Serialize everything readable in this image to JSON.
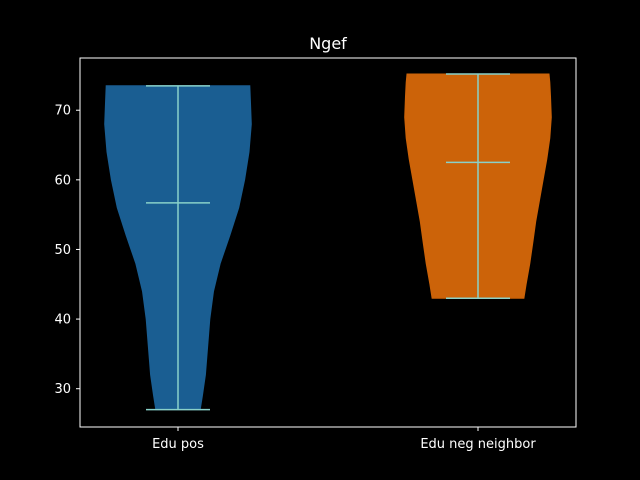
{
  "chart_data": {
    "type": "violin",
    "title": "Ngef",
    "xlabel": "",
    "ylabel": "",
    "categories": [
      "Edu pos",
      "Edu neg neighbor"
    ],
    "ylim": [
      24.5,
      77.5
    ],
    "yticks": [
      30,
      40,
      50,
      60,
      70
    ],
    "grid": false,
    "series": [
      {
        "category": "Edu pos",
        "color": "#1a5e92",
        "min": 27.0,
        "median": 56.7,
        "max": 73.5,
        "density_profile": [
          [
            27.0,
            0.3
          ],
          [
            29.0,
            0.33
          ],
          [
            32.0,
            0.37
          ],
          [
            36.0,
            0.4
          ],
          [
            40.0,
            0.43
          ],
          [
            44.0,
            0.48
          ],
          [
            48.0,
            0.57
          ],
          [
            52.0,
            0.7
          ],
          [
            56.0,
            0.82
          ],
          [
            60.0,
            0.9
          ],
          [
            64.0,
            0.96
          ],
          [
            68.0,
            0.99
          ],
          [
            71.0,
            0.98
          ],
          [
            73.5,
            0.97
          ]
        ]
      },
      {
        "category": "Edu neg neighbor",
        "color": "#cc6309",
        "min": 43.0,
        "median": 62.5,
        "max": 75.2,
        "density_profile": [
          [
            43.0,
            0.62
          ],
          [
            45.0,
            0.65
          ],
          [
            48.0,
            0.7
          ],
          [
            51.0,
            0.74
          ],
          [
            54.0,
            0.78
          ],
          [
            57.0,
            0.83
          ],
          [
            60.0,
            0.88
          ],
          [
            63.0,
            0.93
          ],
          [
            66.0,
            0.97
          ],
          [
            69.0,
            0.99
          ],
          [
            72.0,
            0.98
          ],
          [
            74.0,
            0.97
          ],
          [
            75.2,
            0.96
          ]
        ]
      }
    ],
    "colors": {
      "background": "#000000",
      "axes": "#ffffff",
      "lines": "#89d1c9",
      "text": "#ffffff"
    }
  }
}
